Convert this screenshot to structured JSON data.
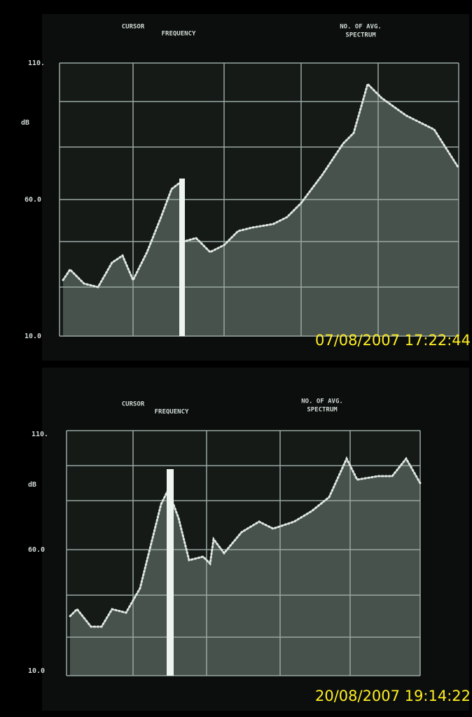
{
  "screens": [
    {
      "header": {
        "cursor": "CURSOR",
        "frequency": "FREQUENCY",
        "averages": "NO. OF AVG.",
        "mode": "SPECTRUM"
      },
      "axis": {
        "top": "110.",
        "unit": "dB",
        "middle": "60.0",
        "bottom": "10.0"
      },
      "timestamp": "07/08/2007 17:22:44"
    },
    {
      "header": {
        "cursor": "CURSOR",
        "frequency": "FREQUENCY",
        "averages": "NO. OF AVG.",
        "mode": "SPECTRUM"
      },
      "axis": {
        "top": "110.",
        "unit": "dB",
        "middle": "60.0",
        "bottom": "10.0"
      },
      "timestamp": "20/08/2007 19:14:22"
    }
  ]
}
